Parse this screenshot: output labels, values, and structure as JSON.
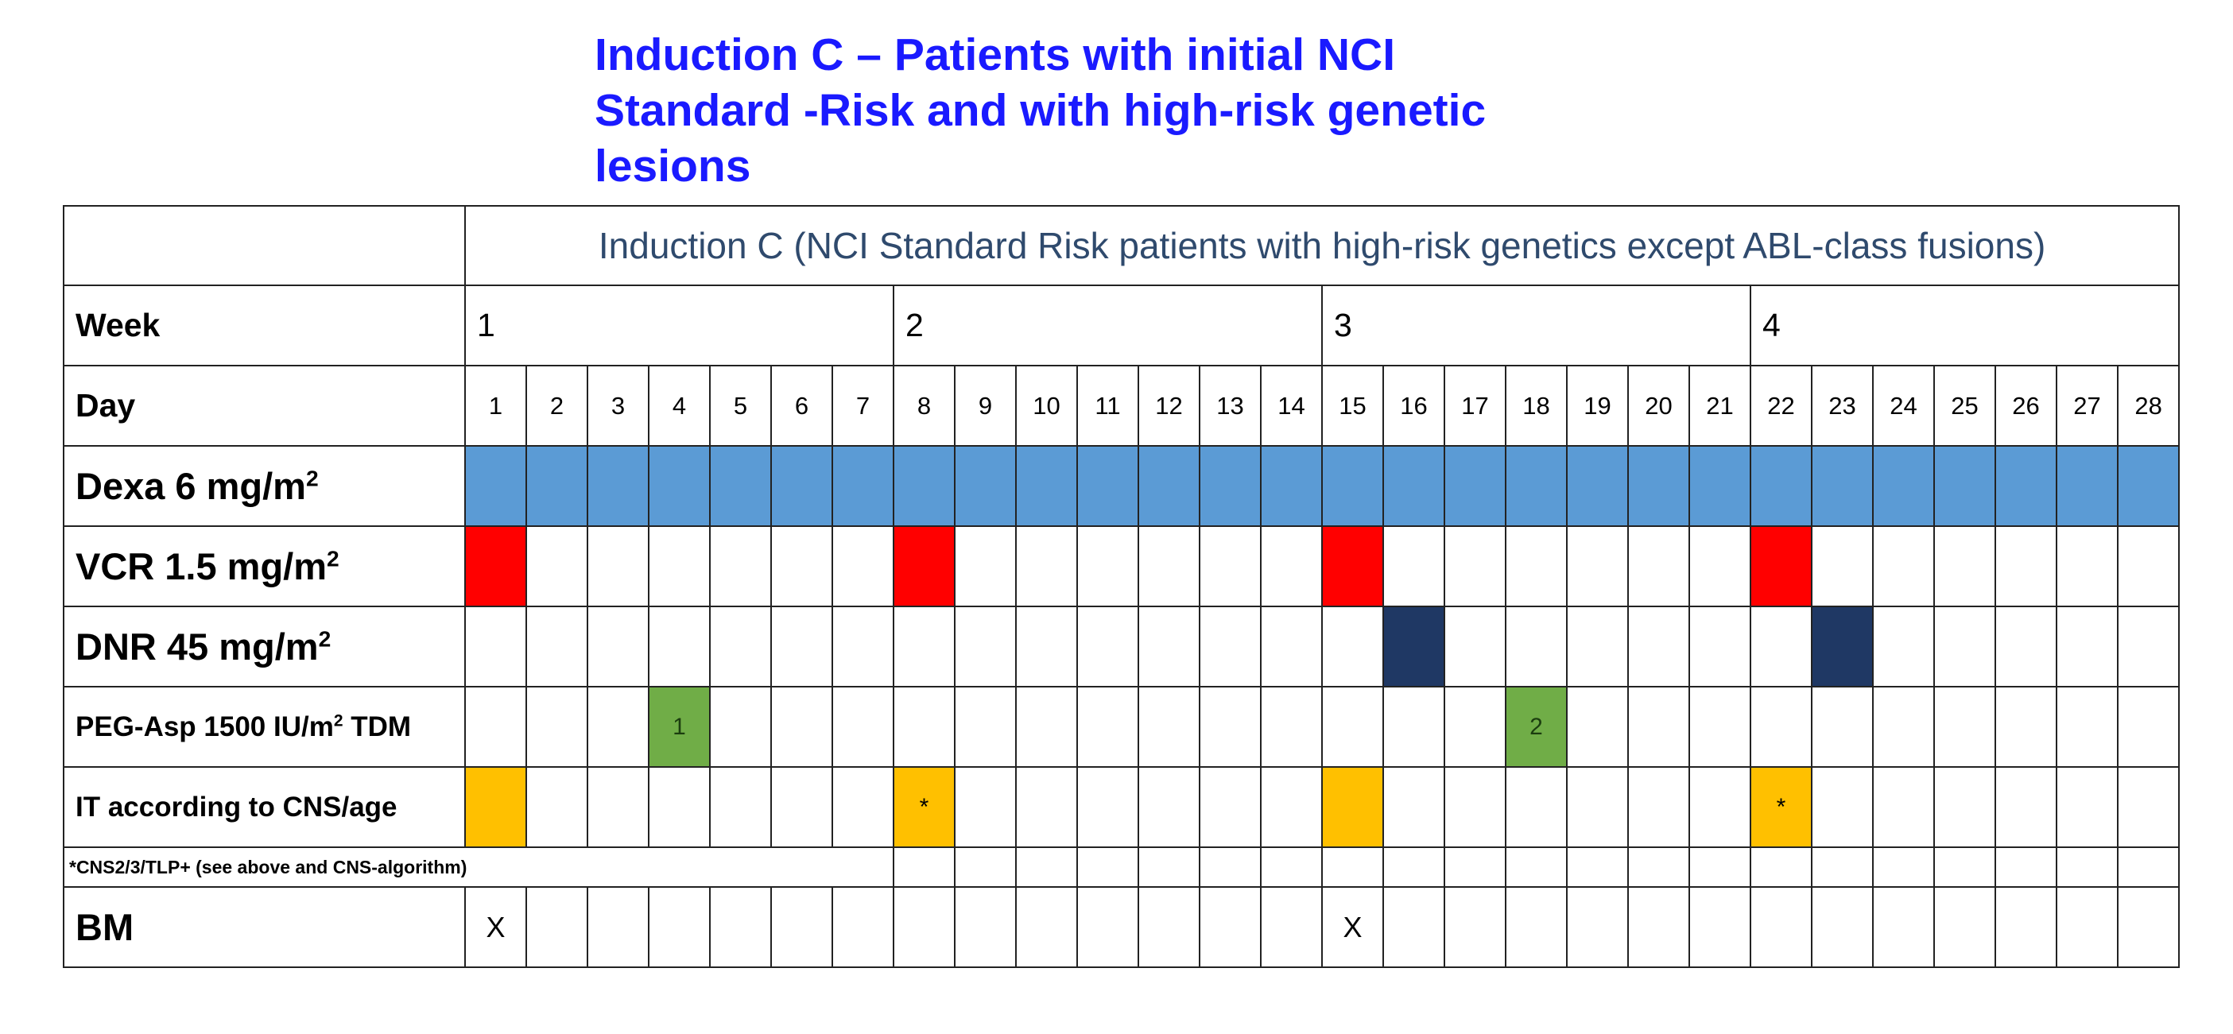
{
  "title": {
    "line1": "Induction C – Patients with initial NCI",
    "line2": "Standard -Risk and with high-risk genetic",
    "line3": "lesions"
  },
  "table": {
    "header": "Induction C (NCI Standard Risk patients with high-risk genetics except ABL-class fusions)",
    "week_label": "Week",
    "weeks": [
      "1",
      "2",
      "3",
      "4"
    ],
    "day_label": "Day",
    "days": [
      "1",
      "2",
      "3",
      "4",
      "5",
      "6",
      "7",
      "8",
      "9",
      "10",
      "11",
      "12",
      "13",
      "14",
      "15",
      "16",
      "17",
      "18",
      "19",
      "20",
      "21",
      "22",
      "23",
      "24",
      "25",
      "26",
      "27",
      "28"
    ],
    "rows": [
      {
        "key": "dexa",
        "label": "Dexa 6 mg/m",
        "sup": "2",
        "suffix": "",
        "size": "lbl-lg",
        "color": "#5b9bd5",
        "full": true,
        "marks": {}
      },
      {
        "key": "vcr",
        "label": "VCR 1.5 mg/m",
        "sup": "2",
        "suffix": "",
        "size": "lbl-lg",
        "color": "#ff0000",
        "full": false,
        "marks": {
          "1": "",
          "8": "",
          "15": "",
          "22": ""
        }
      },
      {
        "key": "dnr",
        "label": "DNR 45 mg/m",
        "sup": "2",
        "suffix": "",
        "size": "lbl-lg",
        "color": "#1f3864",
        "full": false,
        "marks": {
          "16": "",
          "23": ""
        }
      },
      {
        "key": "peg",
        "label": "PEG-Asp 1500 IU/m",
        "sup": "2",
        "suffix": " TDM",
        "size": "lbl-sm",
        "color": "#70ad47",
        "full": false,
        "marks": {
          "4": "1",
          "18": "2"
        }
      },
      {
        "key": "it",
        "label": "IT according to CNS/age",
        "sup": "",
        "suffix": "",
        "size": "lbl-xs",
        "color": "#ffc000",
        "full": false,
        "marks": {
          "1": "",
          "8": "*",
          "15": "",
          "22": "*"
        }
      }
    ],
    "note": "*CNS2/3/TLP+ (see above and CNS-algorithm)",
    "bm": {
      "label": "BM",
      "marks": {
        "1": "X",
        "15": "X"
      }
    }
  },
  "colors": {
    "title": "#1a1aff",
    "header_text": "#2f4a6d",
    "dexa": "#5b9bd5",
    "vcr": "#ff0000",
    "dnr": "#1f3864",
    "peg": "#70ad47",
    "it": "#ffc000"
  }
}
